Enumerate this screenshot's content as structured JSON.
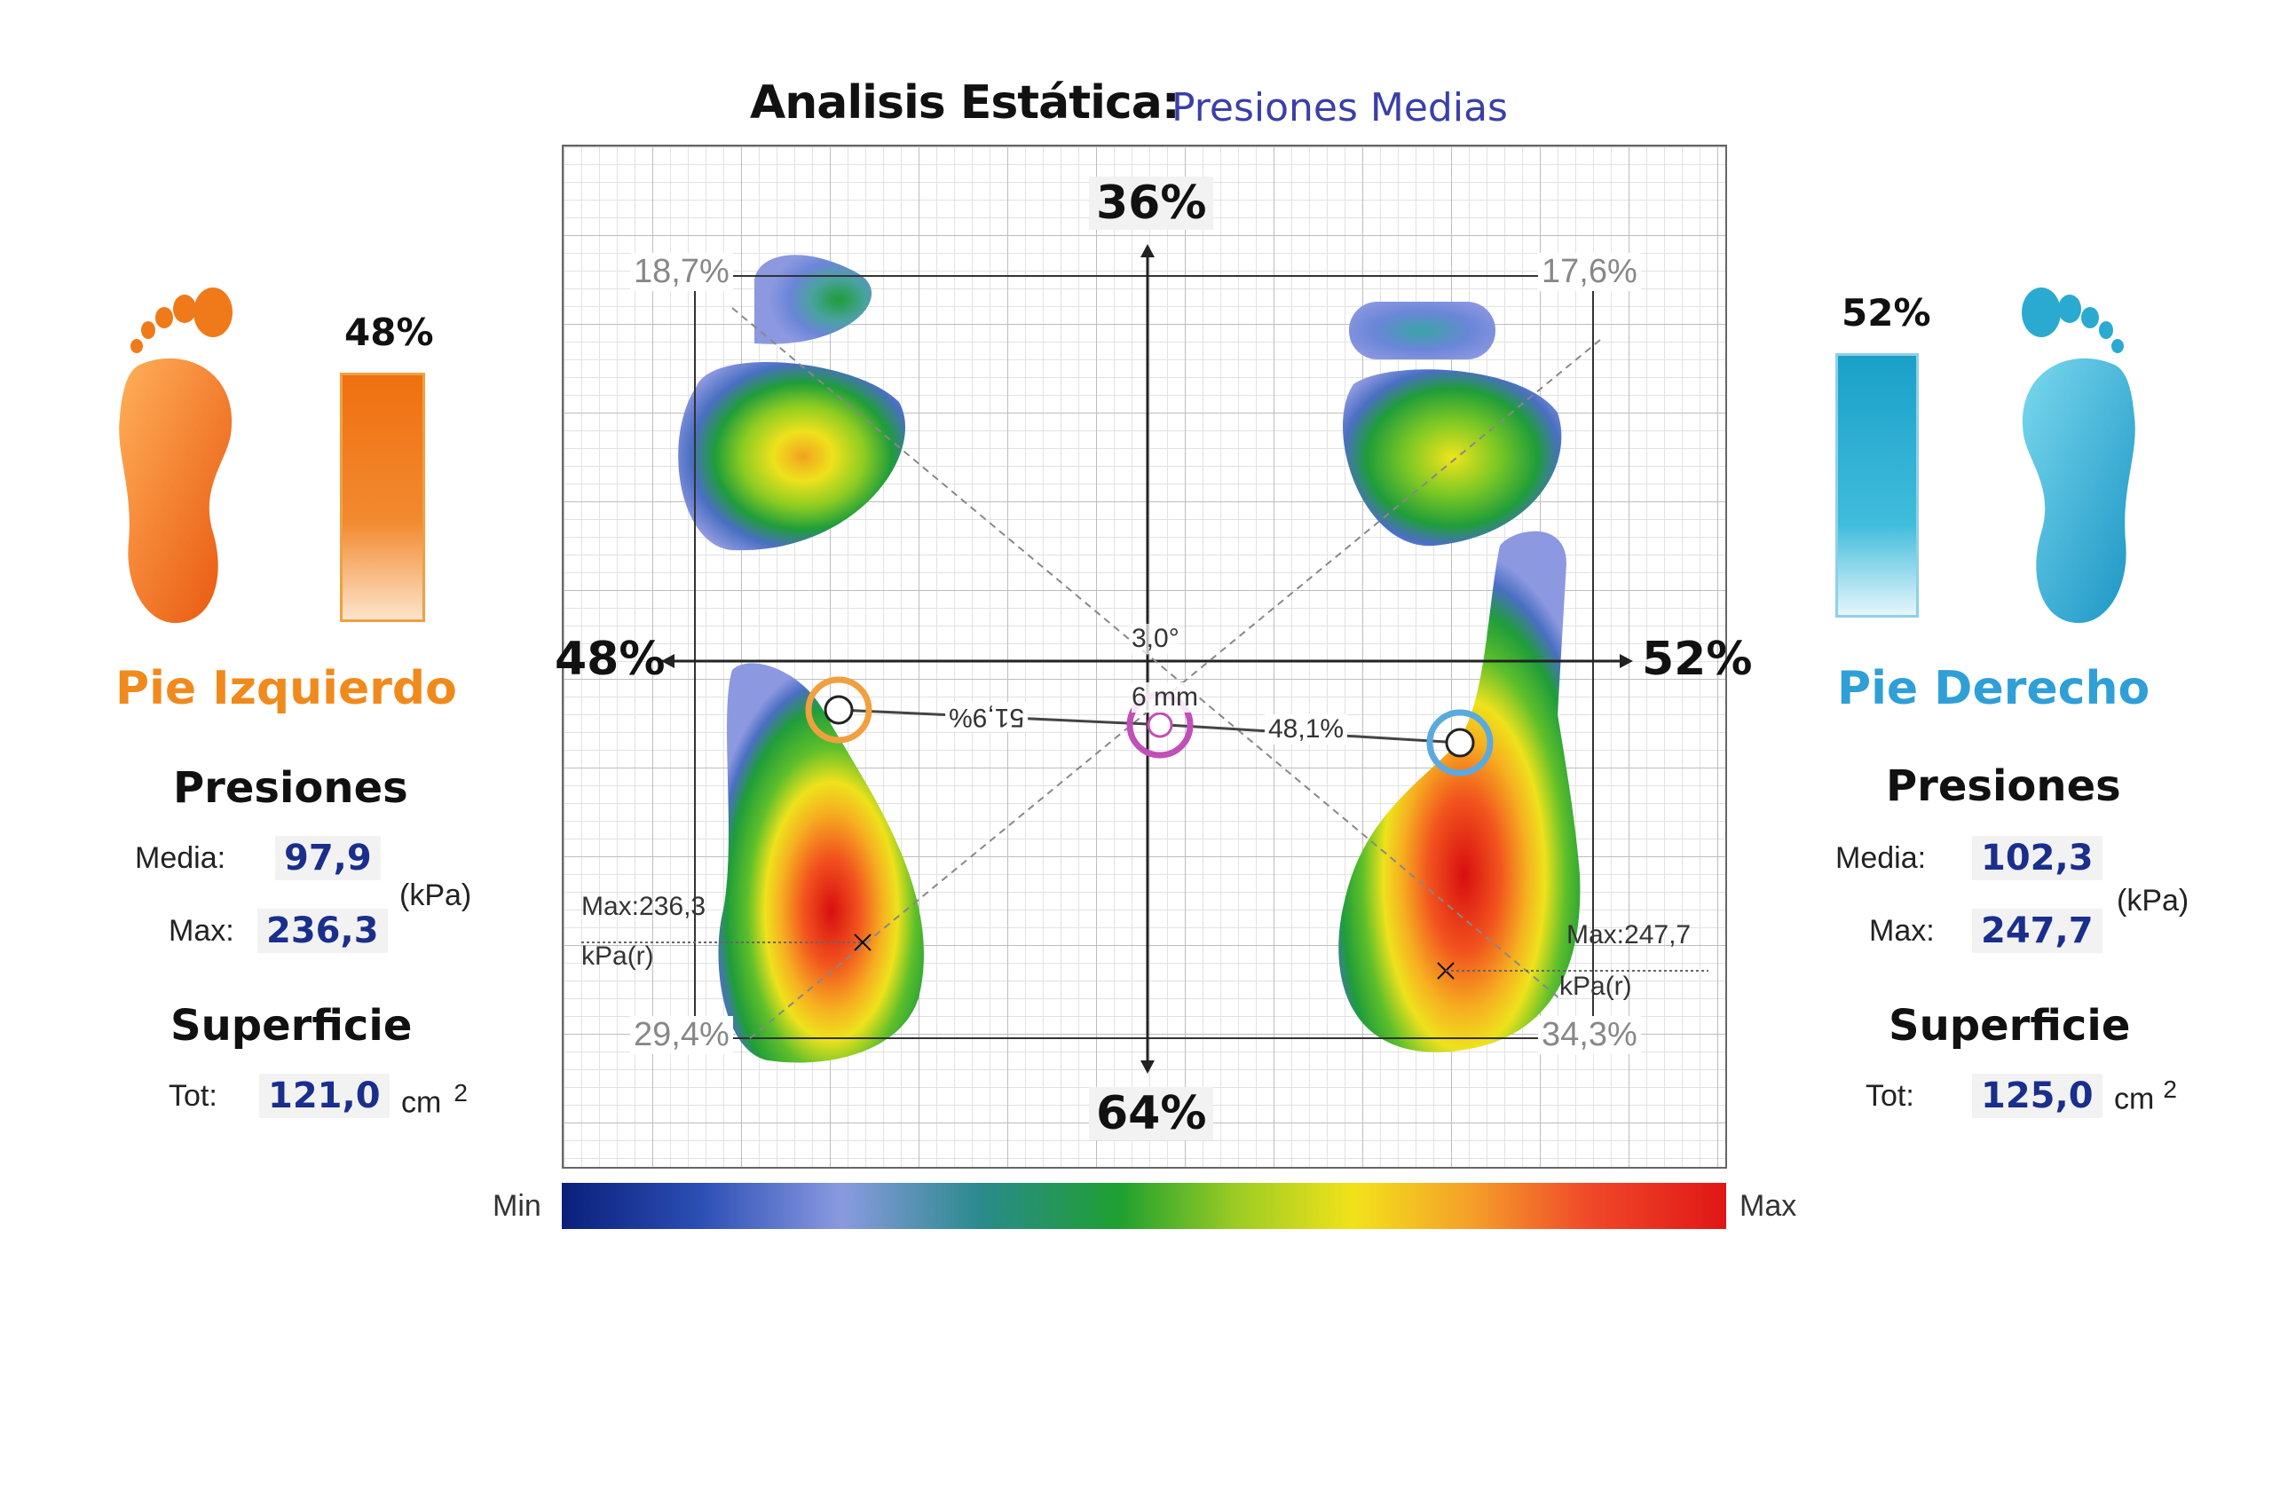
{
  "header": {
    "title": "Analisis Estática:",
    "subtitle": "Presiones Medias"
  },
  "left": {
    "name": "Pie Izquierdo",
    "load_pct": "48%",
    "load_fraction": 0.48,
    "pressures_title": "Presiones",
    "media_label": "Media:",
    "media_value": "97,9",
    "max_label": "Max:",
    "max_value": "236,3",
    "pressure_unit": "(kPa)",
    "surface_title": "Superficie",
    "tot_label": "Tot:",
    "tot_value": "121,0",
    "area_unit": "cm",
    "area_exp": "2",
    "color": "#f07a1a"
  },
  "right": {
    "name": "Pie Derecho",
    "load_pct": "52%",
    "load_fraction": 0.52,
    "pressures_title": "Presiones",
    "media_label": "Media:",
    "media_value": "102,3",
    "max_label": "Max:",
    "max_value": "247,7",
    "pressure_unit": "(kPa)",
    "surface_title": "Superficie",
    "tot_label": "Tot:",
    "tot_value": "125,0",
    "area_unit": "cm",
    "area_exp": "2",
    "color": "#2aaad0"
  },
  "plot": {
    "top_pct": "36%",
    "bottom_pct": "64%",
    "left_pct": "48%",
    "right_pct": "52%",
    "quadrants": {
      "tl": "18,7%",
      "tr": "17,6%",
      "bl": "29,4%",
      "br": "34,3%"
    },
    "angle": "3,0°",
    "offset": "6 mm",
    "cop_left": "51,9%",
    "cop_right": "48,1%",
    "max_left": "Max:236,3",
    "max_left_unit": "kPa(r)",
    "max_right": "Max:247,7",
    "max_right_unit": "kPa(r)"
  },
  "colorbar": {
    "min": "Min",
    "max": "Max"
  }
}
